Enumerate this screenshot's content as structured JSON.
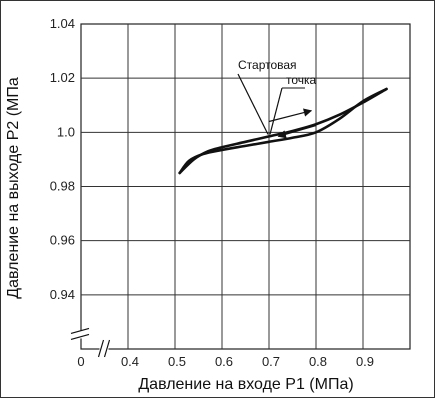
{
  "chart_data": {
    "type": "line",
    "xlabel": "Давление на входе P1 (МПа)",
    "ylabel": "Давление на выходе P2 (МПа",
    "xlim": [
      0.3,
      1.0
    ],
    "ylim": [
      0.92,
      1.04
    ],
    "x_ticks": [
      "0",
      "0.4",
      "0.5",
      "0.6",
      "0.7",
      "0.8",
      "0.9"
    ],
    "x_tick_values": [
      0.3,
      0.4,
      0.5,
      0.6,
      0.7,
      0.8,
      0.9
    ],
    "y_ticks": [
      "1.04",
      "1.02",
      "1.0",
      "0.98",
      "0.96",
      "0.94"
    ],
    "y_tick_values": [
      1.04,
      1.02,
      1.0,
      0.98,
      0.96,
      0.94
    ],
    "grid": true,
    "axis_breaks": true,
    "series": [
      {
        "values": [
          [
            0.51,
            0.985
          ],
          [
            0.54,
            0.99
          ],
          [
            0.57,
            0.993
          ],
          [
            0.6,
            0.9945
          ],
          [
            0.65,
            0.9965
          ],
          [
            0.7,
            0.9985
          ],
          [
            0.75,
            1.0005
          ],
          [
            0.8,
            1.003
          ],
          [
            0.85,
            1.0065
          ],
          [
            0.9,
            1.011
          ],
          [
            0.95,
            1.016
          ]
        ]
      },
      {
        "values": [
          [
            0.51,
            0.985
          ],
          [
            0.53,
            0.9895
          ],
          [
            0.56,
            0.992
          ],
          [
            0.6,
            0.9935
          ],
          [
            0.65,
            0.995
          ],
          [
            0.7,
            0.9965
          ],
          [
            0.75,
            0.998
          ],
          [
            0.8,
            1.0
          ],
          [
            0.85,
            1.005
          ],
          [
            0.9,
            1.0115
          ],
          [
            0.95,
            1.016
          ]
        ]
      }
    ],
    "annotation": {
      "text_line1": "Стартовая",
      "text_line2": "точка",
      "target": [
        0.7,
        0.9985
      ]
    },
    "arrows": [
      {
        "direction": "increasing",
        "from": [
          0.7,
          1.004
        ],
        "to": [
          0.79,
          1.008
        ]
      },
      {
        "direction": "decreasing",
        "from": [
          0.8,
          1.0025
        ],
        "to": [
          0.72,
          0.9985
        ]
      }
    ]
  }
}
